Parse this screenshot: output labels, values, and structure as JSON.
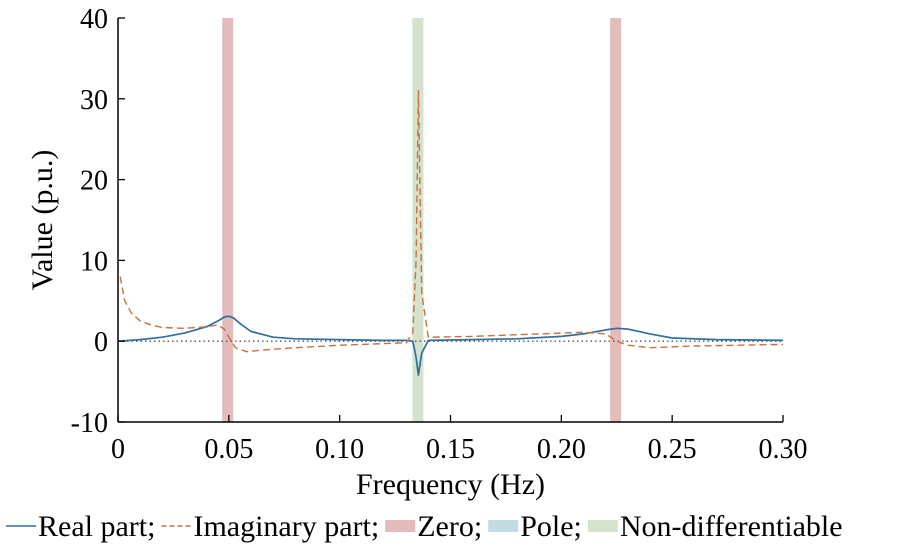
{
  "chart_data": {
    "type": "line",
    "xlabel": "Frequency (Hz)",
    "ylabel": "Value (p.u.)",
    "xlim": [
      0,
      0.3
    ],
    "ylim": [
      -10,
      40
    ],
    "xticks": [
      "0",
      "0.05",
      "0.10",
      "0.15",
      "0.20",
      "0.25",
      "0.30"
    ],
    "xtick_values": [
      0,
      0.05,
      0.1,
      0.15,
      0.2,
      0.25,
      0.3
    ],
    "yticks": [
      "40",
      "30",
      "20",
      "10",
      "0",
      "-10"
    ],
    "ytick_values": [
      40,
      30,
      20,
      10,
      0,
      -10
    ],
    "zero_line": true,
    "series": [
      {
        "name": "Real part",
        "style": "solid",
        "color": "#2f6fa0",
        "x": [
          0,
          0.01,
          0.02,
          0.03,
          0.04,
          0.045,
          0.048,
          0.05,
          0.052,
          0.055,
          0.06,
          0.07,
          0.08,
          0.1,
          0.12,
          0.13,
          0.133,
          0.1345,
          0.1355,
          0.137,
          0.14,
          0.16,
          0.18,
          0.2,
          0.21,
          0.22,
          0.225,
          0.23,
          0.24,
          0.25,
          0.27,
          0.3
        ],
        "y": [
          0,
          0.2,
          0.5,
          1.0,
          1.8,
          2.5,
          3.0,
          3.1,
          2.9,
          2.2,
          1.2,
          0.5,
          0.3,
          0.2,
          0.1,
          0.1,
          0,
          -2,
          -4.2,
          -1.5,
          0.1,
          0.2,
          0.3,
          0.6,
          0.9,
          1.4,
          1.6,
          1.5,
          0.9,
          0.4,
          0.2,
          0.1
        ]
      },
      {
        "name": "Imaginary part",
        "style": "dashed",
        "color": "#c9703f",
        "x": [
          0.001,
          0.003,
          0.006,
          0.01,
          0.015,
          0.02,
          0.03,
          0.04,
          0.045,
          0.048,
          0.05,
          0.053,
          0.058,
          0.065,
          0.08,
          0.1,
          0.12,
          0.13,
          0.133,
          0.1345,
          0.1355,
          0.137,
          0.14,
          0.16,
          0.18,
          0.2,
          0.21,
          0.22,
          0.225,
          0.23,
          0.24,
          0.26,
          0.3
        ],
        "y": [
          8,
          5,
          3.5,
          2.5,
          2.0,
          1.7,
          1.6,
          1.8,
          2.0,
          1.5,
          0.5,
          -0.8,
          -1.3,
          -1.1,
          -0.8,
          -0.5,
          -0.3,
          -0.2,
          1,
          10,
          31,
          6,
          0.5,
          0.6,
          0.8,
          1.0,
          1.1,
          0.9,
          0,
          -0.5,
          -0.8,
          -0.6,
          -0.4
        ]
      }
    ],
    "bands": [
      {
        "type": "Zero",
        "x": 0.0495,
        "color": "#e4bcbc"
      },
      {
        "type": "Non-differentiable",
        "x": 0.1353,
        "color": "#d5e3cc"
      },
      {
        "type": "Zero",
        "x": 0.2245,
        "color": "#e4bcbc"
      }
    ],
    "legend": {
      "placement": "bottom",
      "entries": [
        {
          "label": "Real part;",
          "kind": "solid",
          "color": "#2f6fa0"
        },
        {
          "label": "Imaginary part;",
          "kind": "dashed",
          "color": "#c9703f"
        },
        {
          "label": "Zero;",
          "kind": "patch",
          "color": "#e4bcbc"
        },
        {
          "label": "Pole;",
          "kind": "patch",
          "color": "#c1dde3"
        },
        {
          "label": "Non-differentiable",
          "kind": "patch",
          "color": "#d5e3cc"
        }
      ]
    }
  }
}
